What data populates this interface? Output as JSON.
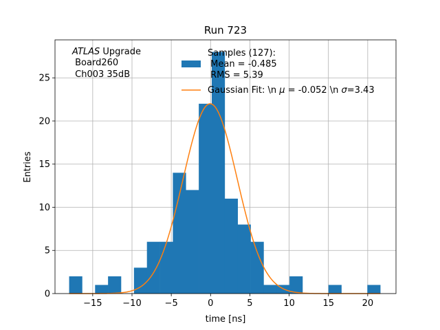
{
  "chart_data": {
    "type": "bar",
    "title": "Run 723",
    "xlabel": "time [ns]",
    "ylabel": "Entries",
    "xlim": [
      -19.8,
      23.6
    ],
    "ylim": [
      0,
      29.4
    ],
    "xticks": [
      -15,
      -10,
      -5,
      0,
      5,
      10,
      15,
      20
    ],
    "yticks": [
      0,
      5,
      10,
      15,
      20,
      25
    ],
    "grid": true,
    "annotation": {
      "atlas": "ATLAS",
      "line1_rest": " Upgrade",
      "line2": " Board260",
      "line3": " Ch003 35dB"
    },
    "legend": {
      "placement": "top-right",
      "hist_lines": [
        "Samples (127):",
        " Mean = -0.485",
        " RMS = 5.39"
      ],
      "fit_prefix": "Gaussian Fit: \\n ",
      "fit_mu_symbol": "μ",
      "fit_mid": " = -0.052 \\n ",
      "fit_sigma_symbol": "σ",
      "fit_suffix": "=3.43"
    },
    "histogram": {
      "bin_width": 1.65,
      "bins": [
        {
          "x0": -18.0,
          "count": 2
        },
        {
          "x0": -16.35,
          "count": 0
        },
        {
          "x0": -14.7,
          "count": 1
        },
        {
          "x0": -13.05,
          "count": 2
        },
        {
          "x0": -11.4,
          "count": 0
        },
        {
          "x0": -9.75,
          "count": 3
        },
        {
          "x0": -8.1,
          "count": 6
        },
        {
          "x0": -6.45,
          "count": 6
        },
        {
          "x0": -4.8,
          "count": 14
        },
        {
          "x0": -3.15,
          "count": 12
        },
        {
          "x0": -1.5,
          "count": 22
        },
        {
          "x0": 0.15,
          "count": 28
        },
        {
          "x0": 1.8,
          "count": 11
        },
        {
          "x0": 3.45,
          "count": 8
        },
        {
          "x0": 5.1,
          "count": 6
        },
        {
          "x0": 6.75,
          "count": 1
        },
        {
          "x0": 8.4,
          "count": 1
        },
        {
          "x0": 10.05,
          "count": 2
        },
        {
          "x0": 11.7,
          "count": 0
        },
        {
          "x0": 13.35,
          "count": 0
        },
        {
          "x0": 15.0,
          "count": 1
        },
        {
          "x0": 16.65,
          "count": 0
        },
        {
          "x0": 18.3,
          "count": 0
        },
        {
          "x0": 19.95,
          "count": 1
        }
      ]
    },
    "gaussian_fit": {
      "amplitude": 22.0,
      "mu": -0.052,
      "sigma": 3.43,
      "x_range": [
        -18.0,
        21.6
      ]
    },
    "colors": {
      "hist": "#1f77b4",
      "fit": "#ff7f0e",
      "grid": "#b0b0b0",
      "axes": "#000000"
    }
  }
}
